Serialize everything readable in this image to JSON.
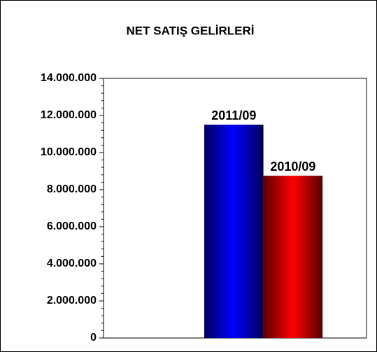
{
  "chart_data": {
    "type": "bar",
    "title": "NET SATIŞ GELİRLERİ",
    "categories": [
      null
    ],
    "series": [
      {
        "name": "2011/09",
        "color": "#0000ff",
        "values": [
          11500000
        ]
      },
      {
        "name": "2010/09",
        "color": "#ff0000",
        "values": [
          8750000
        ]
      }
    ],
    "ylim": [
      0,
      14000000
    ],
    "yticks": [
      0,
      {
        "value": 2000000,
        "label": "2.000.000"
      },
      {
        "value": 4000000,
        "label": "4.000.000"
      },
      {
        "value": 6000000,
        "label": "6.000.000"
      },
      {
        "value": 8000000,
        "label": "8.000.000"
      },
      {
        "value": 10000000,
        "label": "10.000.000"
      },
      {
        "value": 12000000,
        "label": "12.000.000"
      },
      {
        "value": 14000000,
        "label": "14.000.000"
      }
    ]
  }
}
